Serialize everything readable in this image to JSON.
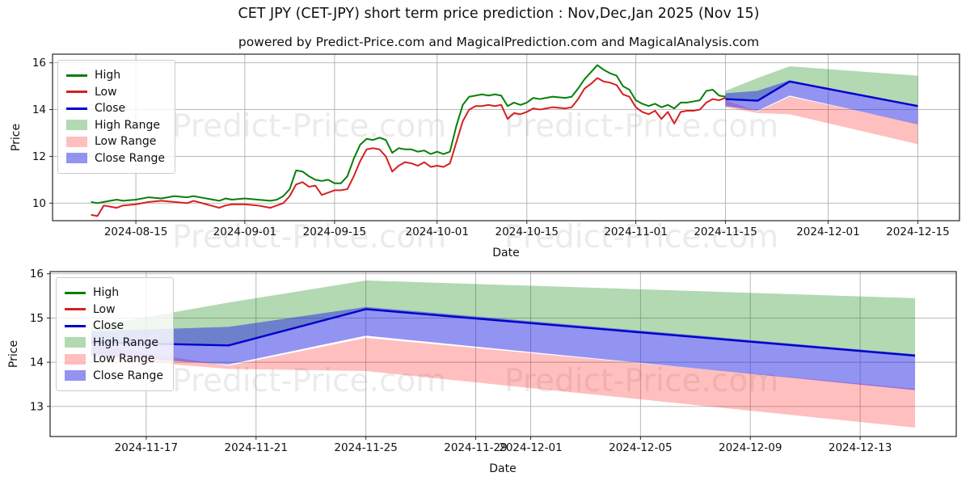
{
  "title": "CET JPY (CET-JPY) short term price prediction : Nov,Dec,Jan 2025 (Nov 15)",
  "subtitle": "powered by Predict-Price.com and MagicalPrediction.com and MagicalAnalysis.com",
  "watermark": {
    "text": "Predict-Price.com"
  },
  "legend": {
    "labels": [
      "High",
      "Low",
      "Close",
      "High Range",
      "Low Range",
      "Close Range"
    ]
  },
  "colors": {
    "high": "#087f08",
    "low": "#d62020",
    "close": "#0000cc",
    "high_range": "rgba(0,128,0,0.30)",
    "low_range": "rgba(255,0,0,0.25)",
    "close_range": "rgba(40,40,230,0.50)",
    "grid": "#b0b0b0",
    "spine": "#262626",
    "text": "#111111"
  },
  "chart_data": [
    {
      "type": "line",
      "xlabel": "Date",
      "ylabel": "Price",
      "grid": true,
      "legend_position": "upper left",
      "x_ticks": [
        "2024-08-15",
        "2024-09-01",
        "2024-09-15",
        "2024-10-01",
        "2024-10-15",
        "2024-11-01",
        "2024-11-15",
        "2024-12-01",
        "2024-12-15"
      ],
      "y_ticks": [
        10,
        12,
        14,
        16
      ],
      "xlim": [
        "2024-08-02T00:00:00",
        "2024-12-21T12:00:00"
      ],
      "ylim": [
        9.25,
        16.37
      ],
      "history": {
        "dates": [
          "2024-08-08",
          "2024-08-09",
          "2024-08-10",
          "2024-08-11",
          "2024-08-12",
          "2024-08-13",
          "2024-08-15",
          "2024-08-17",
          "2024-08-19",
          "2024-08-21",
          "2024-08-23",
          "2024-08-24",
          "2024-08-26",
          "2024-08-28",
          "2024-08-29",
          "2024-08-30",
          "2024-09-01",
          "2024-09-03",
          "2024-09-05",
          "2024-09-06",
          "2024-09-07",
          "2024-09-08",
          "2024-09-09",
          "2024-09-10",
          "2024-09-11",
          "2024-09-12",
          "2024-09-13",
          "2024-09-14",
          "2024-09-15",
          "2024-09-16",
          "2024-09-17",
          "2024-09-18",
          "2024-09-19",
          "2024-09-20",
          "2024-09-21",
          "2024-09-22",
          "2024-09-23",
          "2024-09-24",
          "2024-09-25",
          "2024-09-26",
          "2024-09-27",
          "2024-09-28",
          "2024-09-29",
          "2024-09-30",
          "2024-10-01",
          "2024-10-02",
          "2024-10-03",
          "2024-10-04",
          "2024-10-05",
          "2024-10-06",
          "2024-10-07",
          "2024-10-08",
          "2024-10-09",
          "2024-10-10",
          "2024-10-11",
          "2024-10-12",
          "2024-10-13",
          "2024-10-14",
          "2024-10-15",
          "2024-10-16",
          "2024-10-17",
          "2024-10-18",
          "2024-10-19",
          "2024-10-21",
          "2024-10-22",
          "2024-10-23",
          "2024-10-24",
          "2024-10-25",
          "2024-10-26",
          "2024-10-27",
          "2024-10-28",
          "2024-10-29",
          "2024-10-30",
          "2024-10-31",
          "2024-11-01",
          "2024-11-02",
          "2024-11-03",
          "2024-11-04",
          "2024-11-05",
          "2024-11-06",
          "2024-11-07",
          "2024-11-08",
          "2024-11-09",
          "2024-11-10",
          "2024-11-11",
          "2024-11-12",
          "2024-11-13",
          "2024-11-14",
          "2024-11-15"
        ],
        "high": [
          10.05,
          10.0,
          10.05,
          10.1,
          10.15,
          10.1,
          10.15,
          10.25,
          10.2,
          10.3,
          10.25,
          10.3,
          10.2,
          10.1,
          10.2,
          10.15,
          10.2,
          10.15,
          10.1,
          10.15,
          10.3,
          10.6,
          11.4,
          11.35,
          11.15,
          11.0,
          10.95,
          11.0,
          10.85,
          10.85,
          11.15,
          11.9,
          12.5,
          12.75,
          12.7,
          12.8,
          12.7,
          12.15,
          12.35,
          12.3,
          12.3,
          12.2,
          12.25,
          12.1,
          12.2,
          12.1,
          12.2,
          13.3,
          14.2,
          14.55,
          14.6,
          14.65,
          14.6,
          14.65,
          14.6,
          14.15,
          14.3,
          14.2,
          14.3,
          14.5,
          14.45,
          14.5,
          14.55,
          14.5,
          14.55,
          14.9,
          15.3,
          15.6,
          15.9,
          15.7,
          15.55,
          15.45,
          15.0,
          14.85,
          14.4,
          14.25,
          14.15,
          14.25,
          14.1,
          14.2,
          14.05,
          14.3,
          14.3,
          14.35,
          14.4,
          14.8,
          14.85,
          14.6,
          14.55
        ],
        "low": [
          9.5,
          9.45,
          9.9,
          9.85,
          9.8,
          9.9,
          9.95,
          10.05,
          10.1,
          10.05,
          10.0,
          10.1,
          9.95,
          9.8,
          9.9,
          9.95,
          9.95,
          9.9,
          9.8,
          9.9,
          10.0,
          10.3,
          10.8,
          10.9,
          10.7,
          10.75,
          10.35,
          10.45,
          10.55,
          10.55,
          10.6,
          11.15,
          11.8,
          12.3,
          12.35,
          12.3,
          12.0,
          11.35,
          11.6,
          11.75,
          11.7,
          11.6,
          11.75,
          11.55,
          11.6,
          11.55,
          11.7,
          12.6,
          13.5,
          14.0,
          14.15,
          14.15,
          14.2,
          14.15,
          14.2,
          13.6,
          13.85,
          13.8,
          13.9,
          14.05,
          14.0,
          14.05,
          14.1,
          14.05,
          14.1,
          14.45,
          14.9,
          15.1,
          15.35,
          15.2,
          15.15,
          15.05,
          14.65,
          14.55,
          14.1,
          13.9,
          13.8,
          13.95,
          13.6,
          13.9,
          13.4,
          13.9,
          13.95,
          13.95,
          14.0,
          14.3,
          14.45,
          14.4,
          14.5
        ]
      },
      "forecast": {
        "dates": [
          "2024-11-15",
          "2024-11-20",
          "2024-11-25",
          "2024-12-15"
        ],
        "close": [
          14.45,
          14.38,
          15.2,
          14.15
        ],
        "high_range_upper": [
          14.8,
          15.35,
          15.85,
          15.45
        ],
        "high_range_lower": [
          14.45,
          14.38,
          15.2,
          14.12
        ],
        "close_range_upper": [
          14.7,
          14.8,
          15.25,
          14.18
        ],
        "close_range_lower": [
          14.15,
          13.95,
          14.6,
          13.37
        ],
        "low_range_upper": [
          14.4,
          13.92,
          14.55,
          13.4
        ],
        "low_range_lower": [
          14.1,
          13.85,
          13.8,
          12.52
        ]
      }
    },
    {
      "type": "line",
      "xlabel": "Date",
      "ylabel": "Price",
      "grid": true,
      "legend_position": "upper left",
      "x_ticks": [
        "2024-11-17",
        "2024-11-21",
        "2024-11-25",
        "2024-11-29",
        "2024-12-01",
        "2024-12-05",
        "2024-12-09",
        "2024-12-13"
      ],
      "y_ticks": [
        13,
        14,
        15,
        16
      ],
      "xlim": [
        "2024-11-13T12:00:00",
        "2024-12-16T12:00:00"
      ],
      "ylim": [
        12.32,
        16.05
      ],
      "forecast": {
        "dates": [
          "2024-11-15",
          "2024-11-20",
          "2024-11-25",
          "2024-12-15"
        ],
        "close": [
          14.45,
          14.38,
          15.2,
          14.15
        ],
        "high_range_upper": [
          14.8,
          15.35,
          15.85,
          15.45
        ],
        "high_range_lower": [
          14.45,
          14.38,
          15.2,
          14.12
        ],
        "close_range_upper": [
          14.7,
          14.8,
          15.25,
          14.18
        ],
        "close_range_lower": [
          14.15,
          13.95,
          14.6,
          13.37
        ],
        "low_range_upper": [
          14.4,
          13.92,
          14.55,
          13.4
        ],
        "low_range_lower": [
          14.1,
          13.85,
          13.8,
          12.52
        ]
      }
    }
  ]
}
